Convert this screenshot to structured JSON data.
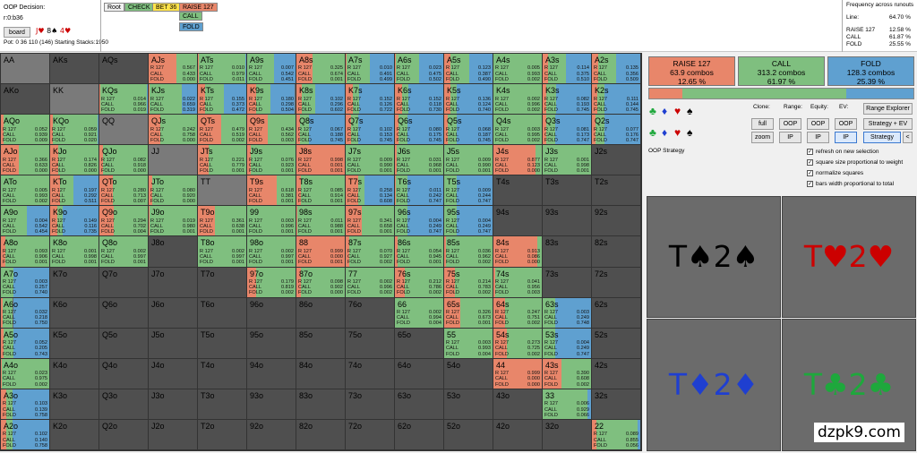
{
  "decision": {
    "label": "OOP Decision:",
    "path": "r:0:b36",
    "board_button": "board",
    "pot": "Pot: 0 36 110 (146) Starting Stacks:1950"
  },
  "breadcrumbs": [
    {
      "label": "Root",
      "color": "#f0f0f0"
    },
    {
      "label": "CHECK",
      "color": "#7fbf7f"
    },
    {
      "label": "BET 36",
      "color": "#ffe34a"
    },
    {
      "label": "RAISE 127",
      "color": "#e8866a"
    }
  ],
  "actions": [
    {
      "label": "CALL",
      "color": "#7fbf7f"
    },
    {
      "label": "FOLD",
      "color": "#5fa0d0"
    }
  ],
  "frequency": {
    "title": "Frequency across runouts",
    "rows": [
      {
        "label": "Line:",
        "value": "64.70 %"
      },
      {
        "label": "RAISE 127",
        "value": "12.58 %"
      },
      {
        "label": "CALL",
        "value": "61.87 %"
      },
      {
        "label": "FOLD",
        "value": "25.55 %"
      }
    ]
  },
  "summary": [
    {
      "name": "RAISE 127",
      "combos": "63.9 combos",
      "pct": "12.65 %",
      "color": "#e8866a"
    },
    {
      "name": "CALL",
      "combos": "313.2 combos",
      "pct": "61.97 %",
      "color": "#7fbf7f"
    },
    {
      "name": "FOLD",
      "combos": "128.3 combos",
      "pct": "25.39 %",
      "color": "#5fa0d0"
    }
  ],
  "summary_bar": [
    0.1265,
    0.6197,
    0.2539
  ],
  "controls": {
    "clone": "Clone:",
    "range": "Range:",
    "equity": "Equity:",
    "ev": "EV:",
    "range_explorer": "Range Explorer",
    "full": "full",
    "zoom": "zoom",
    "oop": "OOP",
    "ip": "IP",
    "strategy_ev": "Strategy + EV",
    "strategy": "Strategy",
    "back": "<"
  },
  "strategy_label": "OOP Strategy",
  "options": [
    {
      "label": "refresh on new selection",
      "checked": true
    },
    {
      "label": "square size proportional to weight",
      "checked": true
    },
    {
      "label": "normalize squares",
      "checked": true
    },
    {
      "label": "bars width proportional to total",
      "checked": true
    }
  ],
  "suits": {
    "s": "♠",
    "d": "♦",
    "h": "♥",
    "c": "♣"
  },
  "boards": [
    {
      "text": "T♠2♠",
      "color": "#000000"
    },
    {
      "text": "T♥2♥",
      "color": "#cc0000"
    },
    {
      "text": "T♦2♦",
      "color": "#1f3fd0"
    },
    {
      "text": "T♣2♣",
      "color": "#1ea83c"
    }
  ],
  "watermark": "dzpk9.com",
  "stat_labels": {
    "raise": "R 127",
    "call": "CALL",
    "fold": "FOLD"
  },
  "grid": [
    [
      {
        "h": "AA"
      },
      {
        "h": "AKs"
      },
      {
        "h": "AQs"
      },
      {
        "h": "AJs",
        "r": 0.567,
        "c": 0.433,
        "f": 0
      },
      {
        "h": "ATs",
        "r": 0.01,
        "c": 0.979,
        "f": 0.011
      },
      {
        "h": "A9s",
        "r": 0.007,
        "c": 0.542,
        "f": 0.451
      },
      {
        "h": "A8s",
        "r": 0.325,
        "c": 0.674,
        "f": 0.001
      },
      {
        "h": "A7s",
        "r": 0.01,
        "c": 0.491,
        "f": 0.499
      },
      {
        "h": "A6s",
        "r": 0.023,
        "c": 0.475,
        "f": 0.502
      },
      {
        "h": "A5s",
        "r": 0.123,
        "c": 0.387,
        "f": 0.49
      },
      {
        "h": "A4s",
        "r": 0.005,
        "c": 0.993,
        "f": 0.002
      },
      {
        "h": "A3s",
        "r": 0.114,
        "c": 0.375,
        "f": 0.51
      },
      {
        "h": "A2s",
        "r": 0.135,
        "c": 0.356,
        "f": 0.509
      }
    ],
    [
      {
        "h": "AKo"
      },
      {
        "h": "KK"
      },
      {
        "h": "KQs",
        "r": 0.014,
        "c": 0.966,
        "f": 0.019
      },
      {
        "h": "KJs",
        "r": 0.022,
        "c": 0.659,
        "f": 0.319
      },
      {
        "h": "KTs",
        "r": 0.155,
        "c": 0.373,
        "f": 0.472
      },
      {
        "h": "K9s",
        "r": 0.18,
        "c": 0.298,
        "f": 0.504
      },
      {
        "h": "K8s",
        "r": 0.102,
        "c": 0.296,
        "f": 0.602
      },
      {
        "h": "K7s",
        "r": 0.152,
        "c": 0.126,
        "f": 0.722
      },
      {
        "h": "K6s",
        "r": 0.152,
        "c": 0.118,
        "f": 0.73
      },
      {
        "h": "K5s",
        "r": 0.136,
        "c": 0.124,
        "f": 0.74
      },
      {
        "h": "K4s",
        "r": 0.002,
        "c": 0.996,
        "f": 0.002
      },
      {
        "h": "K3s",
        "r": 0.082,
        "c": 0.193,
        "f": 0.745
      },
      {
        "h": "K2s",
        "r": 0.111,
        "c": 0.144,
        "f": 0.745
      }
    ],
    [
      {
        "h": "AQo",
        "r": 0.052,
        "c": 0.939,
        "f": 0.009
      },
      {
        "h": "KQo",
        "r": 0.059,
        "c": 0.921,
        "f": 0.02
      },
      {
        "h": "QQ"
      },
      {
        "h": "QJs",
        "r": 0.242,
        "c": 0.758,
        "f": 0
      },
      {
        "h": "QTs",
        "r": 0.479,
        "c": 0.519,
        "f": 0.002
      },
      {
        "h": "Q9s",
        "r": 0.434,
        "c": 0.562,
        "f": 0.003
      },
      {
        "h": "Q8s",
        "r": 0.067,
        "c": 0.188,
        "f": 0.745
      },
      {
        "h": "Q7s",
        "r": 0.102,
        "c": 0.153,
        "f": 0.745
      },
      {
        "h": "Q6s",
        "r": 0.08,
        "c": 0.175,
        "f": 0.745
      },
      {
        "h": "Q5s",
        "r": 0.068,
        "c": 0.187,
        "f": 0.745
      },
      {
        "h": "Q4s",
        "r": 0.003,
        "c": 0.995,
        "f": 0.002
      },
      {
        "h": "Q3s",
        "r": 0.081,
        "c": 0.173,
        "f": 0.747
      },
      {
        "h": "Q2s",
        "r": 0.077,
        "c": 0.176,
        "f": 0.747
      }
    ],
    [
      {
        "h": "AJo",
        "r": 0.366,
        "c": 0.633,
        "f": 0
      },
      {
        "h": "KJo",
        "r": 0.174,
        "c": 0.826,
        "f": 0
      },
      {
        "h": "QJo",
        "r": 0.082,
        "c": 0.918,
        "f": 0
      },
      {
        "h": "JJ"
      },
      {
        "h": "JTs",
        "r": 0.221,
        "c": 0.779,
        "f": 0.001
      },
      {
        "h": "J9s",
        "r": 0.076,
        "c": 0.923,
        "f": 0.001
      },
      {
        "h": "J8s",
        "r": 0.998,
        "c": 0.001,
        "f": 0.001
      },
      {
        "h": "J7s",
        "r": 0.009,
        "c": 0.99,
        "f": 0.001
      },
      {
        "h": "J6s",
        "r": 0.031,
        "c": 0.968,
        "f": 0.001
      },
      {
        "h": "J5s",
        "r": 0.009,
        "c": 0.99,
        "f": 0.001
      },
      {
        "h": "J4s",
        "r": 0.877,
        "c": 0.123,
        "f": 0
      },
      {
        "h": "J3s",
        "r": 0.001,
        "c": 0.998,
        "f": 0.001
      },
      {
        "h": "J2s"
      }
    ],
    [
      {
        "h": "ATo",
        "r": 0.005,
        "c": 0.993,
        "f": 0.002
      },
      {
        "h": "KTo",
        "r": 0.197,
        "c": 0.292,
        "f": 0.511
      },
      {
        "h": "QTo",
        "r": 0.28,
        "c": 0.713,
        "f": 0.007
      },
      {
        "h": "JTo",
        "r": 0.08,
        "c": 0.92,
        "f": 0
      },
      {
        "h": "TT"
      },
      {
        "h": "T9s",
        "r": 0.618,
        "c": 0.381,
        "f": 0.001
      },
      {
        "h": "T8s",
        "r": 0.085,
        "c": 0.914,
        "f": 0.001
      },
      {
        "h": "T7s",
        "r": 0.258,
        "c": 0.134,
        "f": 0.608
      },
      {
        "h": "T6s",
        "r": 0.011,
        "c": 0.242,
        "f": 0.747
      },
      {
        "h": "T5s",
        "r": 0.009,
        "c": 0.244,
        "f": 0.747
      },
      {
        "h": "T4s"
      },
      {
        "h": "T3s"
      },
      {
        "h": "T2s"
      }
    ],
    [
      {
        "h": "A9o",
        "r": 0.004,
        "c": 0.542,
        "f": 0.454
      },
      {
        "h": "K9o",
        "r": 0.149,
        "c": 0.116,
        "f": 0.735
      },
      {
        "h": "Q9o",
        "r": 0.294,
        "c": 0.702,
        "f": 0.004
      },
      {
        "h": "J9o",
        "r": 0.019,
        "c": 0.98,
        "f": 0.001
      },
      {
        "h": "T9o",
        "r": 0.361,
        "c": 0.638,
        "f": 0.001
      },
      {
        "h": "99",
        "r": 0.003,
        "c": 0.996,
        "f": 0.001
      },
      {
        "h": "98s",
        "r": 0.011,
        "c": 0.988,
        "f": 0.001
      },
      {
        "h": "97s",
        "r": 0.341,
        "c": 0.658,
        "f": 0.001
      },
      {
        "h": "96s",
        "r": 0.004,
        "c": 0.249,
        "f": 0.747
      },
      {
        "h": "95s",
        "r": 0.004,
        "c": 0.249,
        "f": 0.747
      },
      {
        "h": "94s"
      },
      {
        "h": "93s"
      },
      {
        "h": "92s"
      }
    ],
    [
      {
        "h": "A8o",
        "r": 0.093,
        "c": 0.906,
        "f": 0.001
      },
      {
        "h": "K8o",
        "r": 0.001,
        "c": 0.998,
        "f": 0.001
      },
      {
        "h": "Q8o",
        "r": 0.002,
        "c": 0.997,
        "f": 0.001
      },
      {
        "h": "J8o"
      },
      {
        "h": "T8o",
        "r": 0.002,
        "c": 0.997,
        "f": 0.001
      },
      {
        "h": "98o",
        "r": 0.002,
        "c": 0.997,
        "f": 0.001
      },
      {
        "h": "88",
        "r": 0.999,
        "c": 0,
        "f": 0.001
      },
      {
        "h": "87s",
        "r": 0.07,
        "c": 0.927,
        "f": 0.002
      },
      {
        "h": "86s",
        "r": 0.054,
        "c": 0.945,
        "f": 0.001
      },
      {
        "h": "85s",
        "r": 0.036,
        "c": 0.962,
        "f": 0.002
      },
      {
        "h": "84s",
        "r": 0.913,
        "c": 0.086,
        "f": 0
      },
      {
        "h": "83s"
      },
      {
        "h": "82s"
      }
    ],
    [
      {
        "h": "A7o",
        "r": 0.003,
        "c": 0.257,
        "f": 0.74
      },
      {
        "h": "K7o"
      },
      {
        "h": "Q7o"
      },
      {
        "h": "J7o"
      },
      {
        "h": "T7o"
      },
      {
        "h": "97o",
        "r": 0.179,
        "c": 0.819,
        "f": 0.002
      },
      {
        "h": "87o",
        "r": 0.098,
        "c": 0.902,
        "f": 0
      },
      {
        "h": "77",
        "r": 0.002,
        "c": 0.996,
        "f": 0.002
      },
      {
        "h": "76s",
        "r": 0.212,
        "c": 0.786,
        "f": 0.002
      },
      {
        "h": "75s",
        "r": 0.214,
        "c": 0.783,
        "f": 0.002
      },
      {
        "h": "74s",
        "r": 0.041,
        "c": 0.956,
        "f": 0.003
      },
      {
        "h": "73s"
      },
      {
        "h": "72s"
      }
    ],
    [
      {
        "h": "A6o",
        "r": 0.032,
        "c": 0.218,
        "f": 0.75
      },
      {
        "h": "K6o"
      },
      {
        "h": "Q6o"
      },
      {
        "h": "J6o"
      },
      {
        "h": "T6o"
      },
      {
        "h": "96o"
      },
      {
        "h": "86o"
      },
      {
        "h": "76o"
      },
      {
        "h": "66",
        "r": 0.002,
        "c": 0.994,
        "f": 0.004
      },
      {
        "h": "65s",
        "r": 0.326,
        "c": 0.673,
        "f": 0.001
      },
      {
        "h": "64s",
        "r": 0.247,
        "c": 0.751,
        "f": 0.002
      },
      {
        "h": "63s",
        "r": 0.003,
        "c": 0.249,
        "f": 0.748
      },
      {
        "h": "62s"
      }
    ],
    [
      {
        "h": "A5o",
        "r": 0.052,
        "c": 0.205,
        "f": 0.743
      },
      {
        "h": "K5o"
      },
      {
        "h": "Q5o"
      },
      {
        "h": "J5o"
      },
      {
        "h": "T5o"
      },
      {
        "h": "95o"
      },
      {
        "h": "85o"
      },
      {
        "h": "75o"
      },
      {
        "h": "65o"
      },
      {
        "h": "55",
        "r": 0.003,
        "c": 0.993,
        "f": 0.004
      },
      {
        "h": "54s",
        "r": 0.273,
        "c": 0.725,
        "f": 0.002
      },
      {
        "h": "53s",
        "r": 0.004,
        "c": 0.249,
        "f": 0.747
      },
      {
        "h": "52s"
      }
    ],
    [
      {
        "h": "A4o",
        "r": 0.023,
        "c": 0.975,
        "f": 0.002
      },
      {
        "h": "K4o"
      },
      {
        "h": "Q4o"
      },
      {
        "h": "J4o"
      },
      {
        "h": "T4o"
      },
      {
        "h": "94o"
      },
      {
        "h": "84o"
      },
      {
        "h": "74o"
      },
      {
        "h": "64o"
      },
      {
        "h": "54o"
      },
      {
        "h": "44",
        "r": 0.999,
        "c": 0,
        "f": 0
      },
      {
        "h": "43s",
        "r": 0.39,
        "c": 0.608,
        "f": 0.002
      },
      {
        "h": "42s"
      }
    ],
    [
      {
        "h": "A3o",
        "r": 0.103,
        "c": 0.139,
        "f": 0.758
      },
      {
        "h": "K3o"
      },
      {
        "h": "Q3o"
      },
      {
        "h": "J3o"
      },
      {
        "h": "T3o"
      },
      {
        "h": "93o"
      },
      {
        "h": "83o"
      },
      {
        "h": "73o"
      },
      {
        "h": "63o"
      },
      {
        "h": "53o"
      },
      {
        "h": "43o"
      },
      {
        "h": "33",
        "r": 0.006,
        "c": 0.929,
        "f": 0.066
      },
      {
        "h": "32s"
      }
    ],
    [
      {
        "h": "A2o",
        "r": 0.102,
        "c": 0.14,
        "f": 0.758
      },
      {
        "h": "K2o"
      },
      {
        "h": "Q2o"
      },
      {
        "h": "J2o"
      },
      {
        "h": "T2o"
      },
      {
        "h": "92o"
      },
      {
        "h": "82o"
      },
      {
        "h": "72o"
      },
      {
        "h": "62o"
      },
      {
        "h": "52o"
      },
      {
        "h": "42o"
      },
      {
        "h": "32o"
      },
      {
        "h": "22",
        "r": 0.089,
        "c": 0.855,
        "f": 0.056
      }
    ]
  ]
}
